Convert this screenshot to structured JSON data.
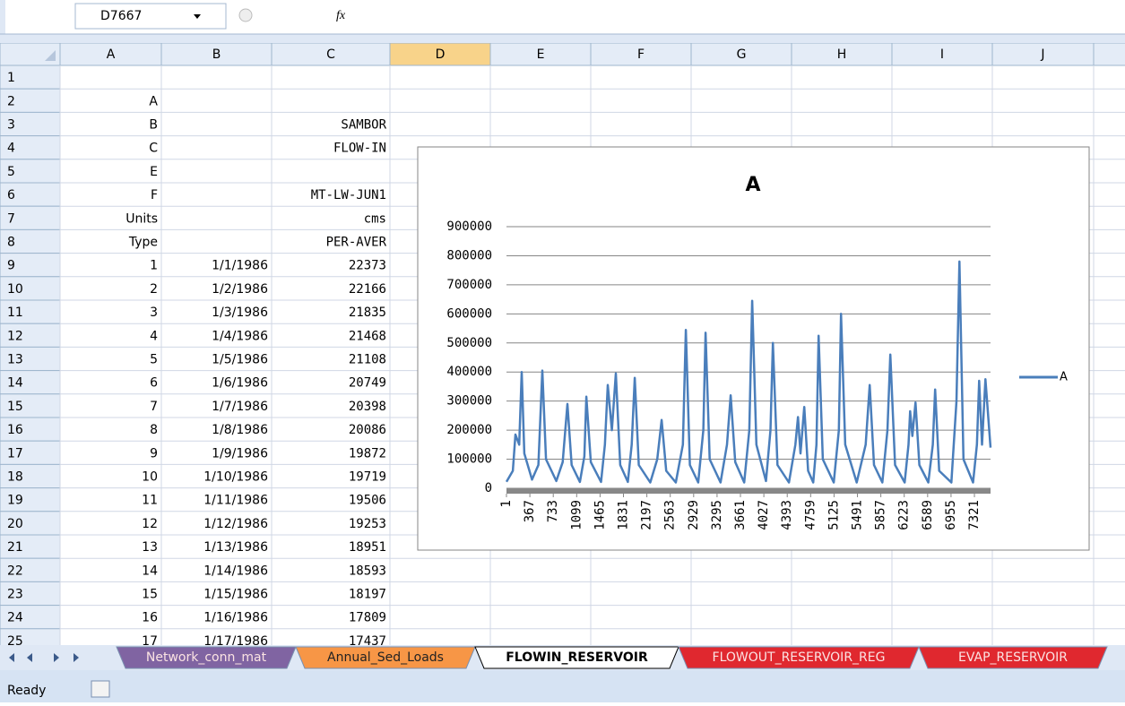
{
  "name_box": "D7667",
  "formula_icon": "fx",
  "columns": [
    "A",
    "B",
    "C",
    "D",
    "E",
    "F",
    "G",
    "H",
    "I",
    "J"
  ],
  "selected_column": 3,
  "rows": [
    {
      "number": 1
    },
    {
      "number": 2,
      "A": "A"
    },
    {
      "number": 3,
      "A": "B",
      "C": "SAMBOR"
    },
    {
      "number": 4,
      "A": "C",
      "C": "FLOW-IN"
    },
    {
      "number": 5,
      "A": "E"
    },
    {
      "number": 6,
      "A": "F",
      "C": "MT-LW-JUN1"
    },
    {
      "number": 7,
      "A": "Units",
      "C": "cms"
    },
    {
      "number": 8,
      "A": "Type",
      "C": "PER-AVER"
    },
    {
      "number": 9,
      "A": 1,
      "B": "1/1/1986",
      "C": 22373
    },
    {
      "number": 10,
      "A": 2,
      "B": "1/2/1986",
      "C": 22166
    },
    {
      "number": 11,
      "A": 3,
      "B": "1/3/1986",
      "C": 21835
    },
    {
      "number": 12,
      "A": 4,
      "B": "1/4/1986",
      "C": 21468
    },
    {
      "number": 13,
      "A": 5,
      "B": "1/5/1986",
      "C": 21108
    },
    {
      "number": 14,
      "A": 6,
      "B": "1/6/1986",
      "C": 20749
    },
    {
      "number": 15,
      "A": 7,
      "B": "1/7/1986",
      "C": 20398
    },
    {
      "number": 16,
      "A": 8,
      "B": "1/8/1986",
      "C": 20086
    },
    {
      "number": 17,
      "A": 9,
      "B": "1/9/1986",
      "C": 19872
    },
    {
      "number": 18,
      "A": 10,
      "B": "1/10/1986",
      "C": 19719
    },
    {
      "number": 19,
      "A": 11,
      "B": "1/11/1986",
      "C": 19506
    },
    {
      "number": 20,
      "A": 12,
      "B": "1/12/1986",
      "C": 19253
    },
    {
      "number": 21,
      "A": 13,
      "B": "1/13/1986",
      "C": 18951
    },
    {
      "number": 22,
      "A": 14,
      "B": "1/14/1986",
      "C": 18593
    },
    {
      "number": 23,
      "A": 15,
      "B": "1/15/1986",
      "C": 18197
    },
    {
      "number": 24,
      "A": 16,
      "B": "1/16/1986",
      "C": 17809
    },
    {
      "number": 25,
      "A": 17,
      "B": "1/17/1986",
      "C": 17437
    }
  ],
  "chart_data": {
    "type": "line",
    "title": "A",
    "x": [
      1,
      100,
      141,
      200,
      240,
      280,
      400,
      500,
      562,
      620,
      780,
      880,
      955,
      1020,
      1150,
      1220,
      1250,
      1320,
      1480,
      1540,
      1586,
      1650,
      1712,
      1780,
      1900,
      1960,
      2007,
      2070,
      2250,
      2360,
      2428,
      2500,
      2650,
      2760,
      2807,
      2870,
      3000,
      3080,
      3116,
      3180,
      3350,
      3450,
      3508,
      3580,
      3720,
      3800,
      3845,
      3910,
      4060,
      4130,
      4168,
      4240,
      4420,
      4520,
      4561,
      4600,
      4659,
      4720,
      4800,
      4850,
      4884,
      4950,
      5120,
      5200,
      5234,
      5300,
      5480,
      5620,
      5683,
      5750,
      5880,
      5960,
      6006,
      6080,
      6230,
      6290,
      6315,
      6350,
      6399,
      6460,
      6600,
      6670,
      6707,
      6770,
      6960,
      7040,
      7086,
      7150,
      7300,
      7360,
      7395,
      7440,
      7493,
      7573
    ],
    "series": [
      {
        "name": "A",
        "color": "#4a7ebb",
        "values": [
          22373,
          60000,
          185000,
          150000,
          400000,
          120000,
          30000,
          80000,
          405000,
          100000,
          25000,
          90000,
          290000,
          80000,
          22000,
          110000,
          315000,
          90000,
          22000,
          150000,
          355000,
          200000,
          395000,
          80000,
          22000,
          150000,
          380000,
          80000,
          20000,
          100000,
          235000,
          60000,
          20000,
          150000,
          545000,
          80000,
          20000,
          200000,
          535000,
          100000,
          20000,
          150000,
          320000,
          90000,
          20000,
          200000,
          645000,
          150000,
          25000,
          200000,
          500000,
          80000,
          20000,
          150000,
          245000,
          120000,
          280000,
          60000,
          20000,
          150000,
          525000,
          100000,
          20000,
          200000,
          600000,
          150000,
          20000,
          150000,
          355000,
          80000,
          20000,
          200000,
          460000,
          80000,
          20000,
          150000,
          265000,
          180000,
          295000,
          80000,
          20000,
          150000,
          340000,
          60000,
          20000,
          300000,
          780000,
          100000,
          20000,
          150000,
          370000,
          150000,
          375000,
          140000
        ]
      }
    ],
    "xlim": [
      1,
      7573
    ],
    "xticks": [
      1,
      367,
      733,
      1099,
      1465,
      1831,
      2197,
      2563,
      2929,
      3295,
      3661,
      4027,
      4393,
      4759,
      5125,
      5491,
      5857,
      6223,
      6589,
      6955,
      7321
    ],
    "ylim": [
      0,
      900000
    ],
    "yticks": [
      0,
      100000,
      200000,
      300000,
      400000,
      500000,
      600000,
      700000,
      800000,
      900000
    ],
    "grid": true,
    "legend": "right"
  },
  "sheet_tabs": [
    {
      "name": "Network_conn_mat",
      "color": "#8064a2"
    },
    {
      "name": "Annual_Sed_Loads",
      "color": "#f79646"
    },
    {
      "name": "FLOWIN_RESERVOIR",
      "color": "#ffffff"
    },
    {
      "name": "FLOWOUT_RESERVOIR_REG",
      "color": "#e0282f"
    },
    {
      "name": "EVAP_RESERVOIR",
      "color": "#e0282f"
    }
  ],
  "active_tab": 2,
  "status": "Ready"
}
